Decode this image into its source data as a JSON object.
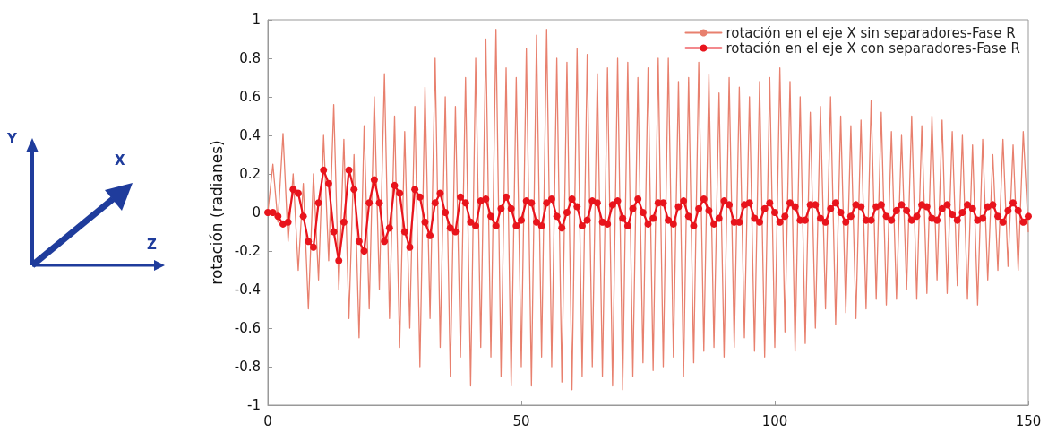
{
  "chart_data": {
    "type": "line",
    "ylabel": "rotación (radianes)",
    "annotations": [
      "Y",
      "X",
      "Z"
    ],
    "x": [
      0,
      1,
      2,
      3,
      4,
      5,
      6,
      7,
      8,
      9,
      10,
      11,
      12,
      13,
      14,
      15,
      16,
      17,
      18,
      19,
      20,
      21,
      22,
      23,
      24,
      25,
      26,
      27,
      28,
      29,
      30,
      31,
      32,
      33,
      34,
      35,
      36,
      37,
      38,
      39,
      40,
      41,
      42,
      43,
      44,
      45,
      46,
      47,
      48,
      49,
      50,
      51,
      52,
      53,
      54,
      55,
      56,
      57,
      58,
      59,
      60,
      61,
      62,
      63,
      64,
      65,
      66,
      67,
      68,
      69,
      70,
      71,
      72,
      73,
      74,
      75,
      76,
      77,
      78,
      79,
      80,
      81,
      82,
      83,
      84,
      85,
      86,
      87,
      88,
      89,
      90,
      91,
      92,
      93,
      94,
      95,
      96,
      97,
      98,
      99,
      100,
      101,
      102,
      103,
      104,
      105,
      106,
      107,
      108,
      109,
      110,
      111,
      112,
      113,
      114,
      115,
      116,
      117,
      118,
      119,
      120,
      121,
      122,
      123,
      124,
      125,
      126,
      127,
      128,
      129,
      130,
      131,
      132,
      133,
      134,
      135,
      136,
      137,
      138,
      139,
      140,
      141,
      142,
      143,
      144,
      145,
      146,
      147,
      148,
      149,
      150
    ],
    "series": [
      {
        "name": "rotación en el eje X sin separadores-Fase R",
        "color": "#e8806e",
        "marker": "none",
        "values": [
          0,
          0.25,
          -0.05,
          0.41,
          -0.15,
          0.2,
          -0.3,
          0.15,
          -0.5,
          0.2,
          -0.35,
          0.4,
          -0.25,
          0.56,
          -0.4,
          0.38,
          -0.55,
          0.3,
          -0.65,
          0.45,
          -0.5,
          0.6,
          -0.4,
          0.72,
          -0.55,
          0.5,
          -0.7,
          0.42,
          -0.6,
          0.55,
          -0.8,
          0.65,
          -0.55,
          0.8,
          -0.7,
          0.6,
          -0.85,
          0.55,
          -0.75,
          0.7,
          -0.9,
          0.8,
          -0.7,
          0.9,
          -0.75,
          0.95,
          -0.85,
          0.75,
          -0.9,
          0.7,
          -0.8,
          0.85,
          -0.9,
          0.92,
          -0.75,
          0.95,
          -0.8,
          0.8,
          -0.88,
          0.78,
          -0.92,
          0.85,
          -0.85,
          0.82,
          -0.8,
          0.72,
          -0.85,
          0.75,
          -0.9,
          0.8,
          -0.92,
          0.78,
          -0.85,
          0.7,
          -0.78,
          0.75,
          -0.82,
          0.8,
          -0.8,
          0.8,
          -0.75,
          0.68,
          -0.85,
          0.7,
          -0.78,
          0.78,
          -0.72,
          0.72,
          -0.7,
          0.62,
          -0.75,
          0.7,
          -0.7,
          0.65,
          -0.65,
          0.6,
          -0.72,
          0.68,
          -0.75,
          0.7,
          -0.7,
          0.75,
          -0.62,
          0.68,
          -0.72,
          0.6,
          -0.68,
          0.52,
          -0.6,
          0.55,
          -0.5,
          0.6,
          -0.58,
          0.5,
          -0.52,
          0.45,
          -0.55,
          0.48,
          -0.5,
          0.58,
          -0.45,
          0.52,
          -0.48,
          0.42,
          -0.45,
          0.4,
          -0.4,
          0.5,
          -0.45,
          0.45,
          -0.42,
          0.5,
          -0.35,
          0.48,
          -0.42,
          0.42,
          -0.38,
          0.4,
          -0.45,
          0.35,
          -0.48,
          0.38,
          -0.35,
          0.3,
          -0.3,
          0.38,
          -0.28,
          0.35,
          -0.3,
          0.42,
          -0.1
        ]
      },
      {
        "name": "rotación en el eje X con separadores-Fase R",
        "color": "#e8141c",
        "marker": "circle",
        "values": [
          0,
          0,
          -0.02,
          -0.06,
          -0.05,
          0.12,
          0.1,
          -0.02,
          -0.15,
          -0.18,
          0.05,
          0.22,
          0.15,
          -0.1,
          -0.25,
          -0.05,
          0.22,
          0.12,
          -0.15,
          -0.2,
          0.05,
          0.17,
          0.05,
          -0.15,
          -0.08,
          0.14,
          0.1,
          -0.1,
          -0.18,
          0.12,
          0.08,
          -0.05,
          -0.12,
          0.05,
          0.1,
          0,
          -0.08,
          -0.1,
          0.08,
          0.05,
          -0.05,
          -0.07,
          0.06,
          0.07,
          -0.02,
          -0.07,
          0.02,
          0.08,
          0.02,
          -0.07,
          -0.04,
          0.06,
          0.05,
          -0.05,
          -0.07,
          0.05,
          0.07,
          -0.02,
          -0.08,
          0,
          0.07,
          0.03,
          -0.07,
          -0.04,
          0.06,
          0.05,
          -0.05,
          -0.06,
          0.04,
          0.06,
          -0.03,
          -0.07,
          0.02,
          0.07,
          0,
          -0.06,
          -0.03,
          0.05,
          0.05,
          -0.04,
          -0.06,
          0.03,
          0.06,
          -0.02,
          -0.07,
          0.02,
          0.07,
          0.01,
          -0.06,
          -0.03,
          0.06,
          0.04,
          -0.05,
          -0.05,
          0.04,
          0.05,
          -0.03,
          -0.05,
          0.02,
          0.05,
          0,
          -0.05,
          -0.02,
          0.05,
          0.03,
          -0.04,
          -0.04,
          0.04,
          0.04,
          -0.03,
          -0.05,
          0.02,
          0.05,
          0,
          -0.05,
          -0.02,
          0.04,
          0.03,
          -0.04,
          -0.04,
          0.03,
          0.04,
          -0.02,
          -0.04,
          0.01,
          0.04,
          0.01,
          -0.04,
          -0.02,
          0.04,
          0.03,
          -0.03,
          -0.04,
          0.02,
          0.04,
          -0.01,
          -0.04,
          0,
          0.04,
          0.02,
          -0.04,
          -0.03,
          0.03,
          0.04,
          -0.02,
          -0.05,
          0.01,
          0.05,
          0.01,
          -0.05,
          -0.02
        ]
      }
    ],
    "xlim": [
      0,
      150
    ],
    "xticks": [
      0,
      50,
      100,
      150
    ],
    "ylim": [
      -1,
      1
    ],
    "yticks": [
      -1,
      -0.8,
      -0.6,
      -0.4,
      -0.2,
      0,
      0.2,
      0.4,
      0.6,
      0.8,
      1
    ],
    "grid": false,
    "legend": "top right",
    "line_style": "solid"
  }
}
